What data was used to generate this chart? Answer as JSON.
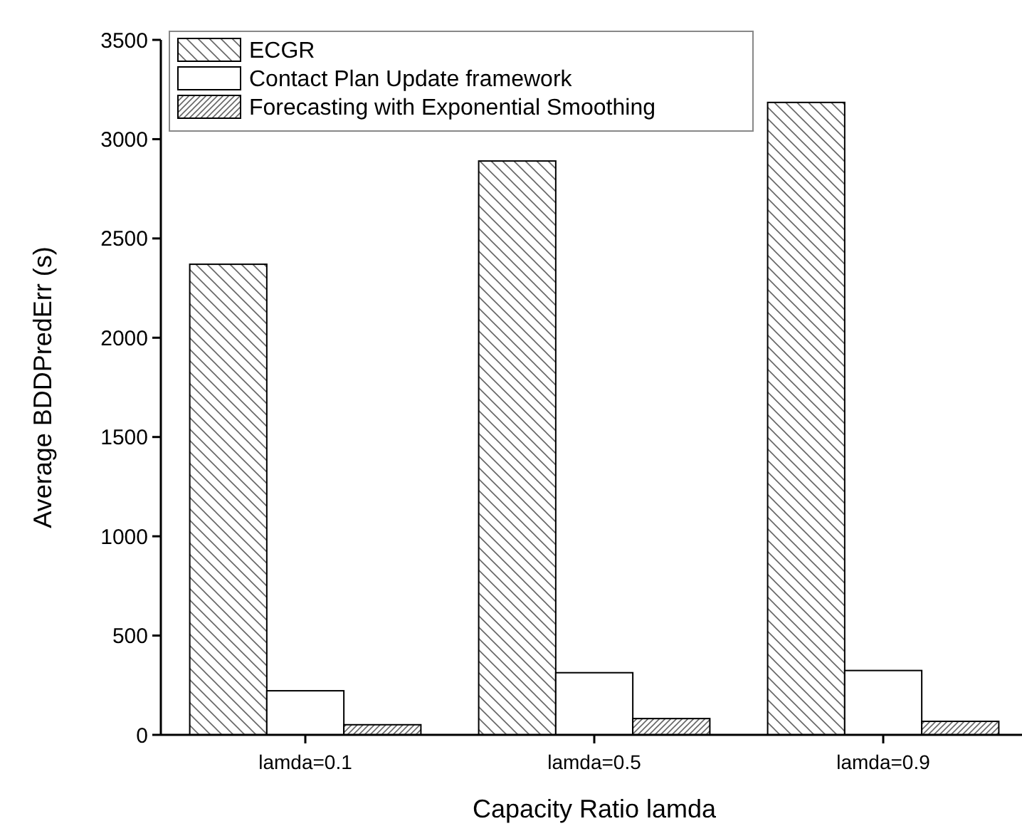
{
  "chart_data": {
    "type": "bar",
    "xlabel": "Capacity Ratio lamda",
    "ylabel": "Average BDDPredErr (s)",
    "categories": [
      "lamda=0.1",
      "lamda=0.5",
      "lamda=0.9"
    ],
    "series": [
      {
        "name": "ECGR",
        "color": "#000000",
        "values": [
          2370,
          2890,
          3185
        ]
      },
      {
        "name": "Contact Plan Update framework",
        "color": "#ffffff",
        "values": [
          222,
          313,
          324
        ]
      },
      {
        "name": "Forecasting with Exponential Smoothing",
        "color": "#000000",
        "values": [
          51,
          82,
          68
        ]
      }
    ],
    "ylim": [
      0,
      3500
    ],
    "yticks": [
      0,
      500,
      1000,
      1500,
      2000,
      2500,
      3000,
      3500
    ],
    "grid": false,
    "legend": "top left"
  }
}
